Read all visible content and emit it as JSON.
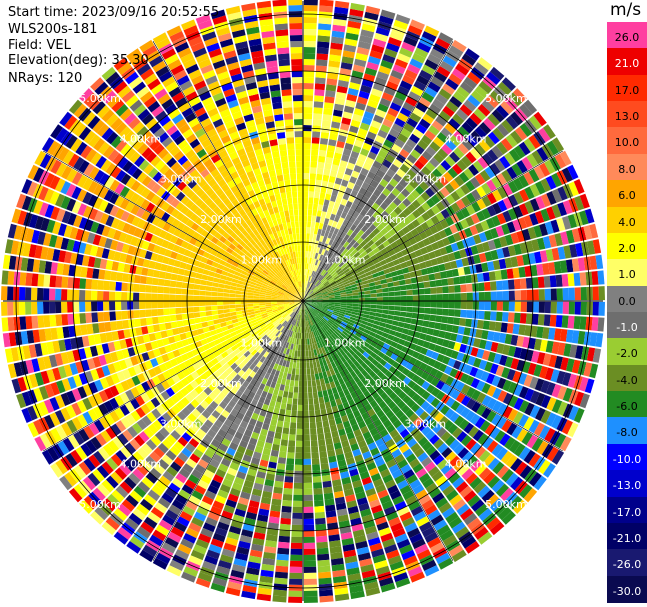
{
  "header": {
    "start_time": "Start time: 2023/09/16 20:52:55",
    "instrument": "WLS200s-181",
    "field": "Field: VEL",
    "elevation": "Elevation(deg): 35.30",
    "nrays": "NRays: 120"
  },
  "colorbar": {
    "unit": "m/s",
    "levels": [
      {
        "label": "26.0",
        "color": "#ff3fa0",
        "text": "#000000"
      },
      {
        "label": "21.0",
        "color": "#ee0000",
        "text": "#ffffff"
      },
      {
        "label": "17.0",
        "color": "#ff2a00",
        "text": "#000000"
      },
      {
        "label": "13.0",
        "color": "#ff4b1f",
        "text": "#000000"
      },
      {
        "label": "10.0",
        "color": "#ff6a3d",
        "text": "#000000"
      },
      {
        "label": "8.0",
        "color": "#ff8a5a",
        "text": "#000000"
      },
      {
        "label": "6.0",
        "color": "#ffa500",
        "text": "#000000"
      },
      {
        "label": "4.0",
        "color": "#ffd000",
        "text": "#000000"
      },
      {
        "label": "2.0",
        "color": "#ffff00",
        "text": "#000000"
      },
      {
        "label": "1.0",
        "color": "#ffff66",
        "text": "#000000"
      },
      {
        "label": "0.0",
        "color": "#808080",
        "text": "#000000"
      },
      {
        "label": "-1.0",
        "color": "#6e6e6e",
        "text": "#ffffff"
      },
      {
        "label": "-2.0",
        "color": "#9acd32",
        "text": "#000000"
      },
      {
        "label": "-4.0",
        "color": "#6b8e23",
        "text": "#000000"
      },
      {
        "label": "-6.0",
        "color": "#228b22",
        "text": "#000000"
      },
      {
        "label": "-8.0",
        "color": "#1e90ff",
        "text": "#000000"
      },
      {
        "label": "-10.0",
        "color": "#0000ff",
        "text": "#ffffff"
      },
      {
        "label": "-13.0",
        "color": "#0000cc",
        "text": "#ffffff"
      },
      {
        "label": "-17.0",
        "color": "#00008b",
        "text": "#ffffff"
      },
      {
        "label": "-21.0",
        "color": "#000066",
        "text": "#ffffff"
      },
      {
        "label": "-26.0",
        "color": "#191970",
        "text": "#ffffff"
      },
      {
        "label": "-30.0",
        "color": "#0a0a50",
        "text": "#ffffff"
      }
    ]
  },
  "chart_data": {
    "type": "heatmap",
    "projection": "polar",
    "field": "VEL",
    "nrays": 120,
    "range_rings_km": [
      1,
      2,
      3,
      4,
      5
    ],
    "ring_labels": [
      "1.00km",
      "2.00km",
      "3.00km",
      "4.00km",
      "5.00km"
    ],
    "max_range_km": 5.0,
    "gate_km": 0.1
  }
}
